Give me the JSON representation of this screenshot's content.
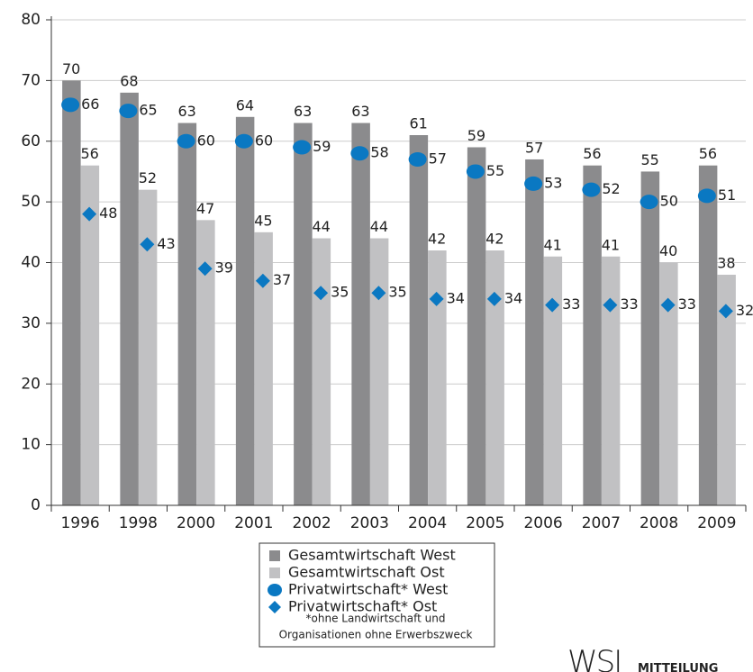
{
  "chart_data": {
    "type": "bar",
    "categories": [
      "1996",
      "1998",
      "2000",
      "2001",
      "2002",
      "2003",
      "2004",
      "2005",
      "2006",
      "2007",
      "2008",
      "2009"
    ],
    "series": [
      {
        "name": "Gesamtwirtschaft West",
        "color": "#8b8b8d",
        "marker": "bar",
        "values": [
          70,
          68,
          63,
          64,
          63,
          63,
          61,
          59,
          57,
          56,
          55,
          56
        ]
      },
      {
        "name": "Gesamtwirtschaft Ost",
        "color": "#c1c1c3",
        "marker": "bar",
        "values": [
          56,
          52,
          47,
          45,
          44,
          44,
          42,
          42,
          41,
          41,
          40,
          38
        ]
      },
      {
        "name": "Privatwirtschaft* West",
        "color": "#0a78c2",
        "marker": "circle",
        "values": [
          66,
          65,
          60,
          60,
          59,
          58,
          57,
          55,
          53,
          52,
          50,
          51
        ]
      },
      {
        "name": "Privatwirtschaft* Ost",
        "color": "#0a78c2",
        "marker": "diamond",
        "values": [
          48,
          43,
          39,
          37,
          35,
          35,
          34,
          34,
          33,
          33,
          33,
          32
        ]
      }
    ],
    "ylim": [
      0,
      80
    ],
    "yticks": [
      0,
      10,
      20,
      30,
      40,
      50,
      60,
      70,
      80
    ],
    "grid": true,
    "note": [
      "*ohne Landwirtschaft und",
      "Organisationen ohne Erwerbszweck"
    ],
    "logo": [
      "WSI",
      "MITTEILUNG"
    ]
  }
}
